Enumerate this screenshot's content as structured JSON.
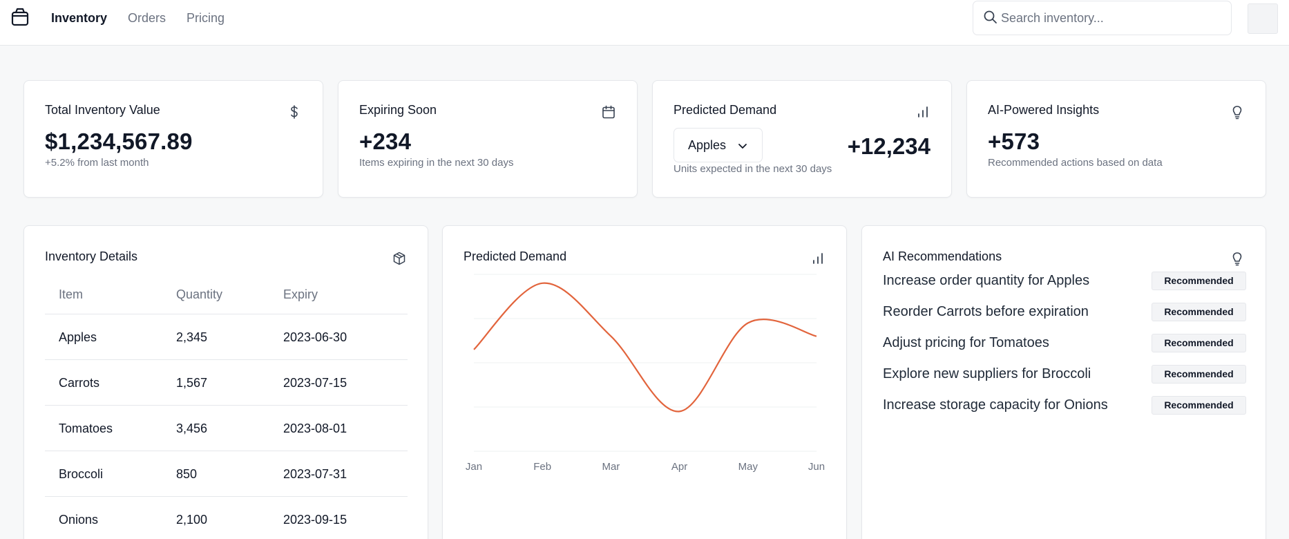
{
  "nav": {
    "logo_icon": "package-icon",
    "items": [
      {
        "label": "Inventory",
        "active": true
      },
      {
        "label": "Orders",
        "active": false
      },
      {
        "label": "Pricing",
        "active": false
      }
    ]
  },
  "search": {
    "placeholder": "Search inventory...",
    "value": "",
    "icon": "search-icon"
  },
  "stats": {
    "total": {
      "title": "Total Inventory Value",
      "value": "$1,234,567.89",
      "sub": "+5.2% from last month",
      "icon": "dollar-icon"
    },
    "expiring": {
      "title": "Expiring Soon",
      "value": "+234",
      "sub": "Items expiring in the next 30 days",
      "icon": "calendar-icon"
    },
    "demand": {
      "title": "Predicted Demand",
      "select_value": "Apples",
      "value": "+12,234",
      "sub": "Units expected in the next 30 days",
      "icon": "bar-chart-icon"
    },
    "insights": {
      "title": "AI-Powered Insights",
      "value": "+573",
      "sub": "Recommended actions based on data",
      "icon": "lightbulb-icon"
    }
  },
  "inventory": {
    "title": "Inventory Details",
    "icon": "box-icon",
    "columns": [
      "Item",
      "Quantity",
      "Expiry"
    ],
    "rows": [
      [
        "Apples",
        "2,345",
        "2023-06-30"
      ],
      [
        "Carrots",
        "1,567",
        "2023-07-15"
      ],
      [
        "Tomatoes",
        "3,456",
        "2023-08-01"
      ],
      [
        "Broccoli",
        "850",
        "2023-07-31"
      ],
      [
        "Onions",
        "2,100",
        "2023-09-15"
      ]
    ]
  },
  "demand_panel": {
    "title": "Predicted Demand",
    "icon": "bar-chart-icon"
  },
  "chart_data": {
    "type": "line",
    "title": "Predicted Demand",
    "categories": [
      "Jan",
      "Feb",
      "Mar",
      "Apr",
      "May",
      "Jun"
    ],
    "series": [
      {
        "values": [
          2.3,
          3.8,
          2.6,
          0.9,
          2.9,
          2.6
        ]
      }
    ],
    "ylim": [
      0,
      4
    ],
    "grid": true,
    "color": "#e2643c"
  },
  "recommendations": {
    "title": "AI Recommendations",
    "icon": "lightbulb-icon",
    "items": [
      {
        "text": "Increase order quantity for Apples",
        "badge": "Recommended"
      },
      {
        "text": "Reorder Carrots before expiration",
        "badge": "Recommended"
      },
      {
        "text": "Adjust pricing for Tomatoes",
        "badge": "Recommended"
      },
      {
        "text": "Explore new suppliers for Broccoli",
        "badge": "Recommended"
      },
      {
        "text": "Increase storage capacity for Onions",
        "badge": "Recommended"
      }
    ]
  }
}
